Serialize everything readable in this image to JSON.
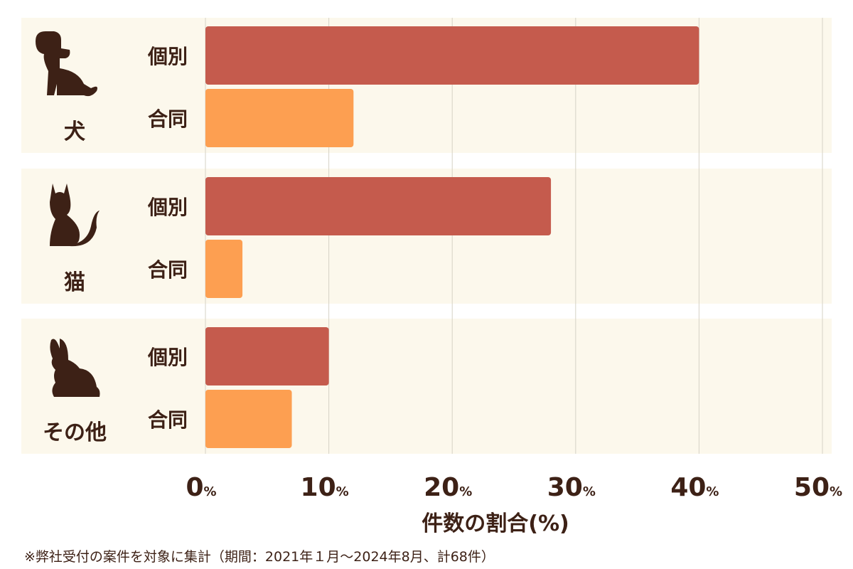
{
  "chart_data": {
    "type": "bar",
    "orientation": "horizontal",
    "xlabel": "件数の割合(%)",
    "xlim": [
      0,
      50
    ],
    "xticks": [
      0,
      10,
      20,
      30,
      40,
      50
    ],
    "tick_suffix": "%",
    "grid": true,
    "groups": [
      {
        "label": "犬",
        "icon": "dog-icon",
        "bars": [
          {
            "name": "個別",
            "value": 40
          },
          {
            "name": "合同",
            "value": 12
          }
        ]
      },
      {
        "label": "猫",
        "icon": "cat-icon",
        "bars": [
          {
            "name": "個別",
            "value": 28
          },
          {
            "name": "合同",
            "value": 3
          }
        ]
      },
      {
        "label": "その他",
        "icon": "rabbit-icon",
        "bars": [
          {
            "name": "個別",
            "value": 10
          },
          {
            "name": "合同",
            "value": 7
          }
        ]
      }
    ],
    "colors": {
      "個別": "#c55b4d",
      "合同": "#fd9f51",
      "panel": "#fcf8ec",
      "grid": "#d6d2c6",
      "text": "#3d2116"
    }
  },
  "footnote": "※弊社受付の案件を対象に集計（期間：2021年１月～2024年8月、計68件）"
}
